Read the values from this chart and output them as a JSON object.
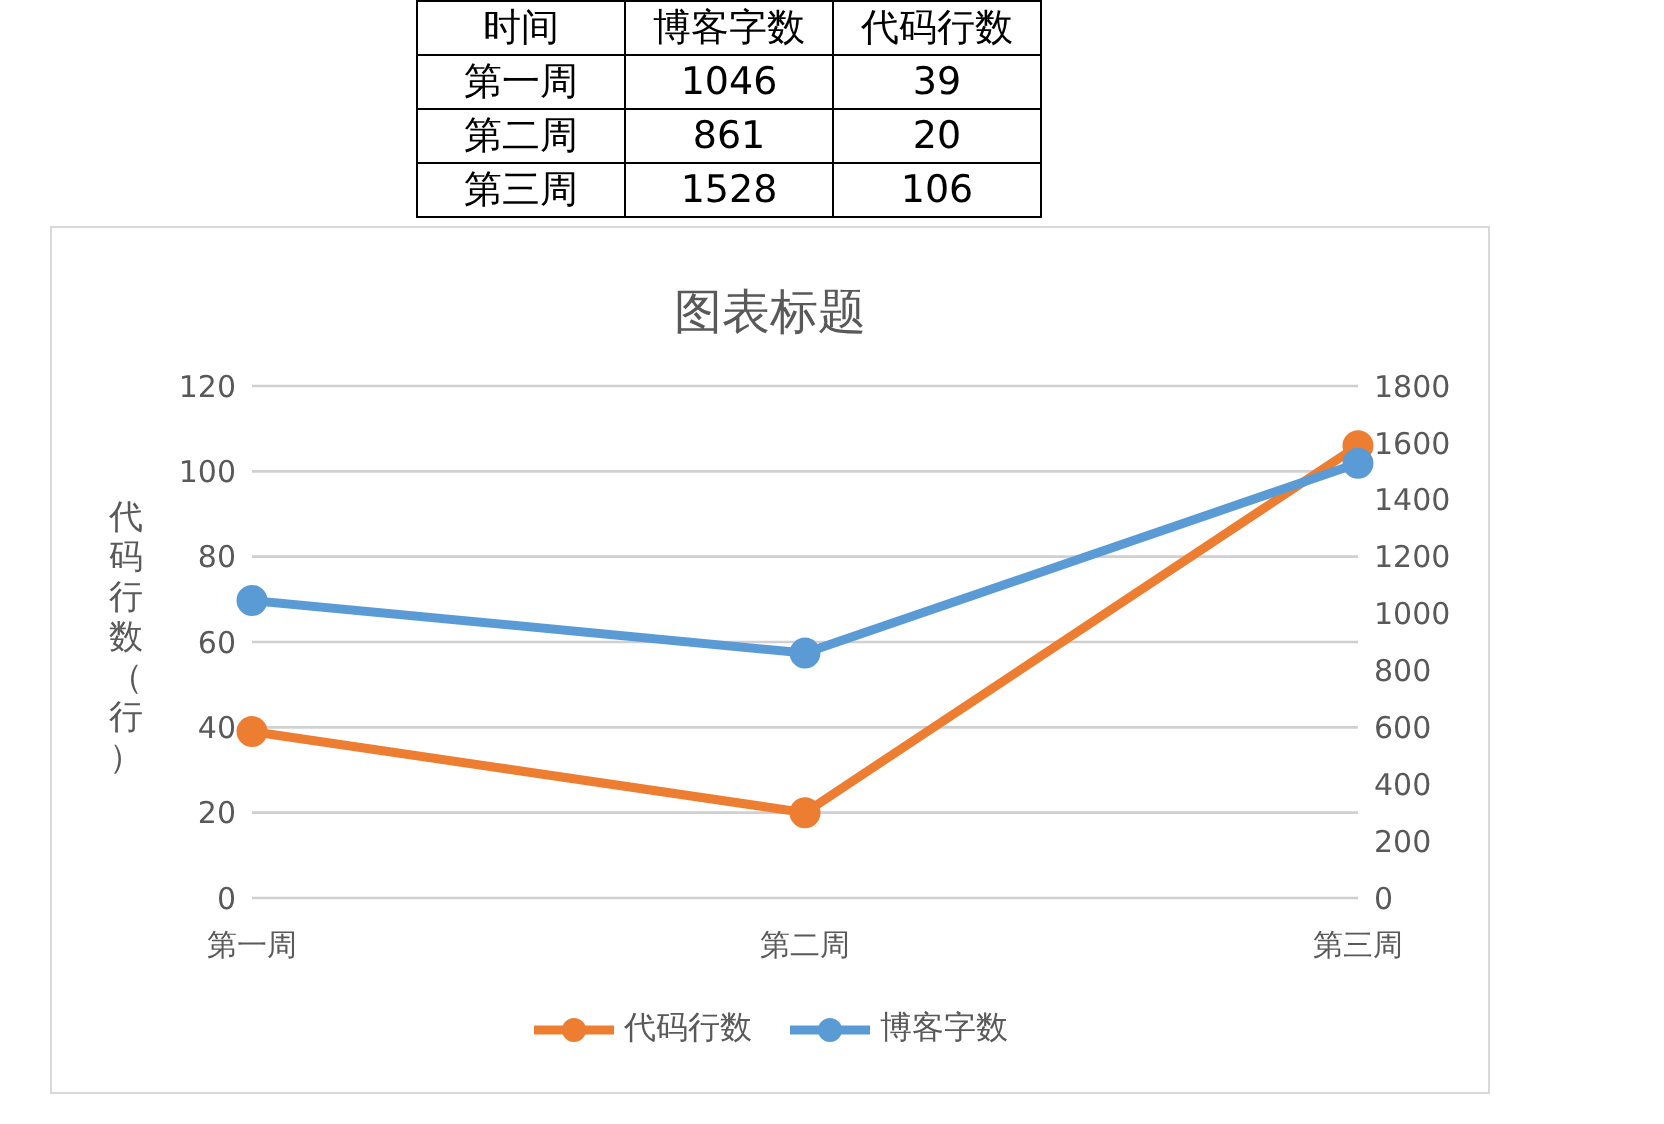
{
  "chart_data": [
    {
      "type": "other",
      "annotations": [
        "时间",
        "博客字数",
        "代码行数",
        "第一周",
        "1046",
        "39",
        "第二周",
        "861",
        "20",
        "第三周",
        "1528",
        "106"
      ]
    },
    {
      "type": "line",
      "title": "图表标题",
      "ylabel": "代码行数（行）",
      "categories": [
        "第一周",
        "第二周",
        "第三周"
      ],
      "series": [
        {
          "name": "代码行数",
          "color": "#ed7d31",
          "values": [
            39,
            20,
            106
          ]
        },
        {
          "name": "博客字数",
          "color": "#5b9bd5",
          "values": [
            1046,
            861,
            1528
          ],
          "axis": "y2"
        }
      ],
      "ylim": [
        0,
        120
      ],
      "yticks": [
        0,
        20,
        40,
        60,
        80,
        100,
        120
      ],
      "y2lim": [
        0,
        1800
      ],
      "y2ticks": [
        0,
        200,
        400,
        600,
        800,
        1000,
        1200,
        1400,
        1600,
        1800
      ],
      "grid": "y",
      "legend": "bottom",
      "marker": "circle",
      "line_style": "solid"
    }
  ]
}
